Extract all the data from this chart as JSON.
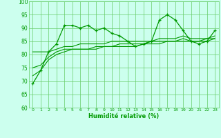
{
  "xlabel": "Humidité relative (%)",
  "background_color": "#ccffee",
  "grid_color": "#66cc66",
  "line_color": "#009900",
  "marker_color": "#009900",
  "xlim": [
    -0.5,
    23.5
  ],
  "ylim": [
    60,
    100
  ],
  "yticks": [
    60,
    65,
    70,
    75,
    80,
    85,
    90,
    95,
    100
  ],
  "xticks": [
    0,
    1,
    2,
    3,
    4,
    5,
    6,
    7,
    8,
    9,
    10,
    11,
    12,
    13,
    14,
    15,
    16,
    17,
    18,
    19,
    20,
    21,
    22,
    23
  ],
  "series": [
    {
      "y": [
        69,
        74,
        81,
        84,
        91,
        91,
        90,
        91,
        89,
        90,
        88,
        87,
        85,
        83,
        84,
        85,
        93,
        95,
        93,
        89,
        85,
        84,
        85,
        89
      ],
      "marker": true
    },
    {
      "y": [
        81,
        81,
        81,
        82,
        83,
        83,
        84,
        84,
        84,
        84,
        85,
        85,
        85,
        85,
        85,
        85,
        86,
        86,
        86,
        87,
        86,
        86,
        86,
        87
      ],
      "marker": false
    },
    {
      "y": [
        75,
        76,
        79,
        81,
        82,
        82,
        82,
        82,
        83,
        83,
        83,
        83,
        83,
        83,
        84,
        84,
        84,
        85,
        85,
        85,
        85,
        85,
        85,
        86
      ],
      "marker": false
    },
    {
      "y": [
        72,
        74,
        78,
        80,
        81,
        82,
        82,
        82,
        82,
        83,
        83,
        84,
        84,
        84,
        84,
        85,
        85,
        85,
        85,
        86,
        85,
        85,
        86,
        86
      ],
      "marker": false
    }
  ]
}
